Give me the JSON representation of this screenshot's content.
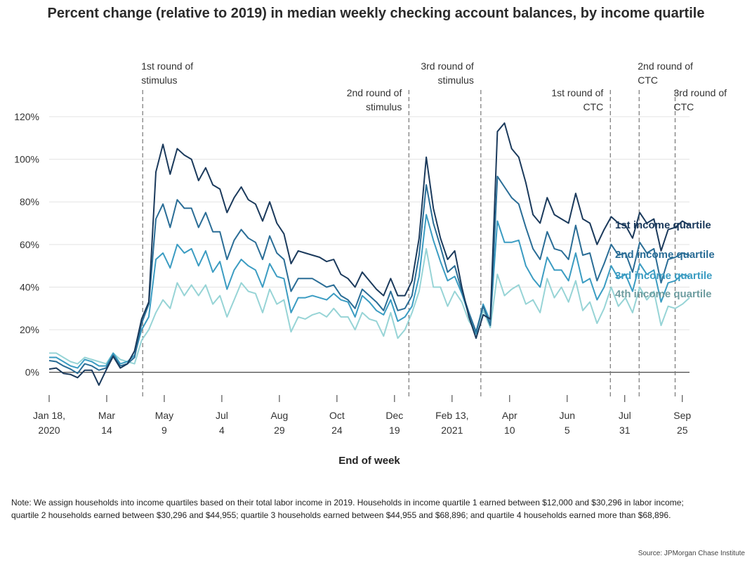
{
  "title": "Percent change (relative to 2019) in median weekly checking account balances, by income quartile",
  "note_lines": [
    "Note: We assign households into income quartiles based on their total labor income in 2019. Households in income quartile 1 earned between $12,000 and $30,296 in labor income;",
    "quartile 2 households earned between $30,296 and $44,955; quartile 3 households earned between $44,955 and $68,896; and quartile 4 households earned more than $68,896."
  ],
  "source": "Source: JPMorgan Chase Institute",
  "chart_data": {
    "type": "line",
    "xlabel": "End of week",
    "ylabel": "",
    "ylim": [
      -10,
      120
    ],
    "yticks": [
      0,
      20,
      40,
      60,
      80,
      100,
      120
    ],
    "ytick_format": "{v}%",
    "grid": "horizontal",
    "legend": "right (labels at line ends)",
    "x_start": "2020-01-18",
    "x_end": "2021-10-02",
    "xticks": [
      {
        "date": "2020-01-18",
        "line1": "Jan 18,",
        "line2": "2020"
      },
      {
        "date": "2020-03-14",
        "line1": "Mar",
        "line2": "14"
      },
      {
        "date": "2020-05-09",
        "line1": "May",
        "line2": "9"
      },
      {
        "date": "2020-07-04",
        "line1": "Jul",
        "line2": "4"
      },
      {
        "date": "2020-08-29",
        "line1": "Aug",
        "line2": "29"
      },
      {
        "date": "2020-10-24",
        "line1": "Oct",
        "line2": "24"
      },
      {
        "date": "2020-12-19",
        "line1": "Dec",
        "line2": "19"
      },
      {
        "date": "2021-02-13",
        "line1": "Feb 13,",
        "line2": "2021"
      },
      {
        "date": "2021-04-10",
        "line1": "Apr",
        "line2": "10"
      },
      {
        "date": "2021-06-05",
        "line1": "Jun",
        "line2": "5"
      },
      {
        "date": "2021-07-31",
        "line1": "Jul",
        "line2": "31"
      },
      {
        "date": "2021-09-25",
        "line1": "Sep",
        "line2": "25"
      }
    ],
    "annotations": [
      {
        "date": "2020-04-18",
        "lines": [
          "1st round of",
          "stimulus"
        ],
        "align": "left",
        "level": 0
      },
      {
        "date": "2021-01-02",
        "lines": [
          "2nd round of",
          "stimulus"
        ],
        "align": "right",
        "level": 1
      },
      {
        "date": "2021-03-13",
        "lines": [
          "3rd round of",
          "stimulus"
        ],
        "align": "right",
        "level": 0
      },
      {
        "date": "2021-07-17",
        "lines": [
          "1st round of",
          "CTC"
        ],
        "align": "right",
        "level": 1
      },
      {
        "date": "2021-08-14",
        "lines": [
          "2nd round of",
          "CTC"
        ],
        "align": "left",
        "level": 0
      },
      {
        "date": "2021-09-18",
        "lines": [
          "3rd round of",
          "CTC"
        ],
        "align": "left",
        "level": 1
      }
    ],
    "series": [
      {
        "name": "1st income quartile",
        "color": "#1b3a5c",
        "values": [
          1.5,
          2,
          -0.5,
          -1,
          -2.5,
          1,
          1,
          -6,
          1,
          7.5,
          2,
          4,
          10,
          25,
          33,
          94,
          107,
          93,
          105,
          102,
          100,
          90,
          96,
          88,
          86,
          75,
          82,
          87,
          81,
          79,
          71,
          80,
          70,
          65,
          51,
          57,
          56,
          55,
          54,
          52,
          53,
          46,
          44,
          40,
          47,
          43,
          39,
          36,
          44,
          36,
          36,
          43,
          63,
          101,
          77,
          63,
          53,
          57,
          40,
          26,
          16,
          27,
          25,
          113,
          117,
          105,
          101,
          89,
          74,
          70,
          82,
          74,
          72,
          70,
          84,
          72,
          70,
          60,
          67,
          73,
          70,
          69,
          63,
          75,
          70,
          72,
          57,
          67,
          68,
          71,
          69
        ]
      },
      {
        "name": "2nd income quartile",
        "color": "#2a6d96",
        "values": [
          5.5,
          5,
          3,
          1.5,
          -0.5,
          4,
          3,
          1,
          2,
          8,
          3,
          4,
          7,
          23,
          32,
          72,
          79,
          68,
          81,
          77,
          77,
          68,
          75,
          66,
          66,
          53,
          62,
          67,
          63,
          61,
          53,
          64,
          56,
          53,
          38,
          44,
          44,
          44,
          42,
          40,
          41,
          36,
          34,
          30,
          39,
          36,
          33,
          29,
          38,
          29,
          30,
          36,
          55,
          88,
          70,
          59,
          47,
          50,
          38,
          28,
          19,
          31,
          22,
          92,
          87,
          82,
          79,
          68,
          58,
          53,
          66,
          58,
          57,
          53,
          69,
          55,
          56,
          43,
          51,
          60,
          55,
          56,
          47,
          61,
          56,
          58,
          42,
          53,
          54,
          56,
          55
        ]
      },
      {
        "name": "3rd income quartile",
        "color": "#3b9cc2",
        "values": [
          7,
          7,
          5,
          3,
          2,
          6,
          5,
          3,
          3,
          9,
          4,
          5,
          8,
          20,
          26,
          53,
          56,
          49,
          60,
          56,
          58,
          50,
          57,
          47,
          52,
          39,
          48,
          53,
          50,
          48,
          40,
          51,
          45,
          44,
          28,
          35,
          35,
          36,
          35,
          34,
          37,
          34,
          33,
          26,
          36,
          33,
          29,
          27,
          34,
          24,
          26,
          31,
          45,
          74,
          62,
          52,
          43,
          45,
          37,
          27,
          18,
          32,
          24,
          71,
          61,
          61,
          62,
          50,
          44,
          40,
          54,
          48,
          48,
          43,
          56,
          42,
          44,
          34,
          40,
          50,
          44,
          46,
          38,
          51,
          46,
          48,
          33,
          42,
          43,
          46,
          45
        ]
      },
      {
        "name": "4th income quartile",
        "color": "#97d4d6",
        "values": [
          9,
          9,
          7,
          5,
          4,
          7,
          6,
          5,
          4,
          9,
          6,
          5,
          4,
          15,
          20,
          28,
          34,
          30,
          42,
          36,
          41,
          36,
          41,
          32,
          36,
          26,
          34,
          42,
          38,
          37,
          28,
          39,
          32,
          34,
          19,
          26,
          25,
          27,
          28,
          26,
          30,
          26,
          26,
          20,
          28,
          25,
          24,
          17,
          28,
          16,
          20,
          28,
          38,
          58,
          40,
          40,
          31,
          38,
          33,
          24,
          19,
          29,
          21,
          46,
          36,
          39,
          41,
          32,
          34,
          28,
          44,
          35,
          40,
          33,
          43,
          29,
          33,
          23,
          30,
          40,
          31,
          35,
          28,
          40,
          34,
          38,
          22,
          31,
          30,
          32,
          35
        ]
      }
    ]
  }
}
